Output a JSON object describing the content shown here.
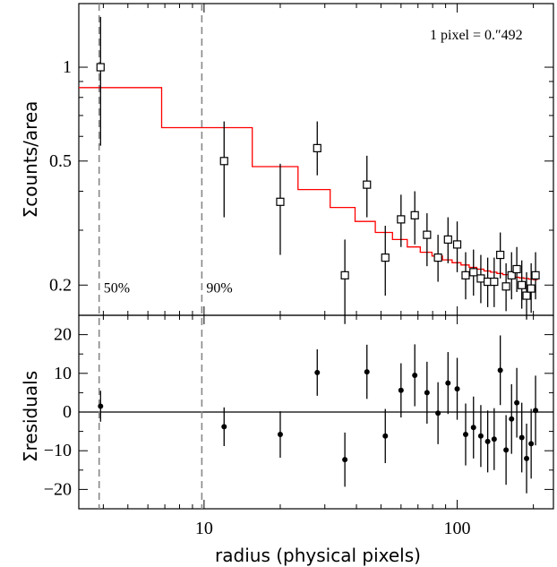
{
  "chart_data": {
    "type": "scatter",
    "xlabel": "radius (physical pixels)",
    "xscale": "log",
    "xlim": [
      3.2,
      240
    ],
    "xticks": [
      10,
      100
    ],
    "xtick_labels": [
      "10",
      "100"
    ],
    "annotation": "1 pixel = 0.″492",
    "top_panel": {
      "ylabel": "Σcounts/area",
      "yscale": "log",
      "ylim": [
        0.16,
        1.6
      ],
      "yticks": [
        0.2,
        0.5,
        1
      ],
      "ytick_labels": [
        "0.2",
        "0.5",
        "1"
      ],
      "points": [
        {
          "x": 3.9,
          "y": 1.0,
          "y_lo": 0.56,
          "y_hi": 1.45
        },
        {
          "x": 12,
          "y": 0.5,
          "y_lo": 0.33,
          "y_hi": 0.67
        },
        {
          "x": 20,
          "y": 0.37,
          "y_lo": 0.25,
          "y_hi": 0.49
        },
        {
          "x": 28,
          "y": 0.55,
          "y_lo": 0.45,
          "y_hi": 0.67
        },
        {
          "x": 36,
          "y": 0.215,
          "y_lo": 0.15,
          "y_hi": 0.28
        },
        {
          "x": 44,
          "y": 0.42,
          "y_lo": 0.33,
          "y_hi": 0.52
        },
        {
          "x": 52,
          "y": 0.245,
          "y_lo": 0.185,
          "y_hi": 0.31
        },
        {
          "x": 60,
          "y": 0.325,
          "y_lo": 0.265,
          "y_hi": 0.39
        },
        {
          "x": 68,
          "y": 0.335,
          "y_lo": 0.27,
          "y_hi": 0.4
        },
        {
          "x": 76,
          "y": 0.29,
          "y_lo": 0.23,
          "y_hi": 0.34
        },
        {
          "x": 84,
          "y": 0.245,
          "y_lo": 0.205,
          "y_hi": 0.29
        },
        {
          "x": 92,
          "y": 0.28,
          "y_lo": 0.235,
          "y_hi": 0.33
        },
        {
          "x": 100,
          "y": 0.27,
          "y_lo": 0.22,
          "y_hi": 0.32
        },
        {
          "x": 108,
          "y": 0.215,
          "y_lo": 0.18,
          "y_hi": 0.255
        },
        {
          "x": 116,
          "y": 0.22,
          "y_lo": 0.185,
          "y_hi": 0.26
        },
        {
          "x": 124,
          "y": 0.21,
          "y_lo": 0.175,
          "y_hi": 0.25
        },
        {
          "x": 132,
          "y": 0.205,
          "y_lo": 0.17,
          "y_hi": 0.245
        },
        {
          "x": 140,
          "y": 0.205,
          "y_lo": 0.17,
          "y_hi": 0.245
        },
        {
          "x": 148,
          "y": 0.25,
          "y_lo": 0.21,
          "y_hi": 0.295
        },
        {
          "x": 156,
          "y": 0.198,
          "y_lo": 0.165,
          "y_hi": 0.235
        },
        {
          "x": 164,
          "y": 0.215,
          "y_lo": 0.18,
          "y_hi": 0.255
        },
        {
          "x": 172,
          "y": 0.225,
          "y_lo": 0.19,
          "y_hi": 0.265
        },
        {
          "x": 180,
          "y": 0.2,
          "y_lo": 0.168,
          "y_hi": 0.24
        },
        {
          "x": 188,
          "y": 0.185,
          "y_lo": 0.155,
          "y_hi": 0.22
        },
        {
          "x": 196,
          "y": 0.195,
          "y_lo": 0.163,
          "y_hi": 0.235
        },
        {
          "x": 204,
          "y": 0.215,
          "y_lo": 0.18,
          "y_hi": 0.255
        }
      ],
      "model_step": [
        {
          "x0": 3.2,
          "x1": 6.8,
          "y": 0.86
        },
        {
          "x0": 6.8,
          "x1": 15.5,
          "y": 0.64
        },
        {
          "x0": 15.5,
          "x1": 23.5,
          "y": 0.48
        },
        {
          "x0": 23.5,
          "x1": 31.5,
          "y": 0.405
        },
        {
          "x0": 31.5,
          "x1": 39.5,
          "y": 0.355
        },
        {
          "x0": 39.5,
          "x1": 47.5,
          "y": 0.32
        },
        {
          "x0": 47.5,
          "x1": 55.5,
          "y": 0.295
        },
        {
          "x0": 55.5,
          "x1": 63.5,
          "y": 0.28
        },
        {
          "x0": 63.5,
          "x1": 71.5,
          "y": 0.265
        },
        {
          "x0": 71.5,
          "x1": 79.5,
          "y": 0.255
        },
        {
          "x0": 79.5,
          "x1": 87.5,
          "y": 0.248
        },
        {
          "x0": 87.5,
          "x1": 95.5,
          "y": 0.241
        },
        {
          "x0": 95.5,
          "x1": 103.5,
          "y": 0.236
        },
        {
          "x0": 103.5,
          "x1": 111.5,
          "y": 0.232
        },
        {
          "x0": 111.5,
          "x1": 119.5,
          "y": 0.228
        },
        {
          "x0": 119.5,
          "x1": 127.5,
          "y": 0.225
        },
        {
          "x0": 127.5,
          "x1": 135.5,
          "y": 0.222
        },
        {
          "x0": 135.5,
          "x1": 143.5,
          "y": 0.22
        },
        {
          "x0": 143.5,
          "x1": 151.5,
          "y": 0.218
        },
        {
          "x0": 151.5,
          "x1": 159.5,
          "y": 0.216
        },
        {
          "x0": 159.5,
          "x1": 167.5,
          "y": 0.214
        },
        {
          "x0": 167.5,
          "x1": 175.5,
          "y": 0.212
        },
        {
          "x0": 175.5,
          "x1": 183.5,
          "y": 0.211
        },
        {
          "x0": 183.5,
          "x1": 191.5,
          "y": 0.21
        },
        {
          "x0": 191.5,
          "x1": 199.5,
          "y": 0.209
        },
        {
          "x0": 199.5,
          "x1": 208,
          "y": 0.208
        }
      ],
      "model_color": "#ff0000",
      "marker": "open-square"
    },
    "bottom_panel": {
      "ylabel": "Σresiduals",
      "ylim": [
        -25,
        25
      ],
      "yticks": [
        -20,
        -10,
        0,
        10,
        20
      ],
      "ytick_labels": [
        "−20",
        "−10",
        "0",
        "10",
        "20"
      ],
      "zero_line": true,
      "points": [
        {
          "x": 3.9,
          "y": 1.5,
          "err": 4
        },
        {
          "x": 12,
          "y": -3.8,
          "err": 5
        },
        {
          "x": 20,
          "y": -5.8,
          "err": 6
        },
        {
          "x": 28,
          "y": 10.2,
          "err": 6
        },
        {
          "x": 36,
          "y": -12.3,
          "err": 7
        },
        {
          "x": 44,
          "y": 10.4,
          "err": 7
        },
        {
          "x": 52,
          "y": -6.2,
          "err": 7
        },
        {
          "x": 60,
          "y": 5.6,
          "err": 7
        },
        {
          "x": 68,
          "y": 9.5,
          "err": 8
        },
        {
          "x": 76,
          "y": 5.0,
          "err": 8
        },
        {
          "x": 84,
          "y": -0.3,
          "err": 8
        },
        {
          "x": 92,
          "y": 7.5,
          "err": 8
        },
        {
          "x": 100,
          "y": 6.0,
          "err": 8
        },
        {
          "x": 108,
          "y": -5.8,
          "err": 8
        },
        {
          "x": 116,
          "y": -4.0,
          "err": 8
        },
        {
          "x": 124,
          "y": -6.2,
          "err": 8
        },
        {
          "x": 132,
          "y": -7.6,
          "err": 8
        },
        {
          "x": 140,
          "y": -7.0,
          "err": 8
        },
        {
          "x": 148,
          "y": 10.8,
          "err": 9
        },
        {
          "x": 156,
          "y": -9.8,
          "err": 9
        },
        {
          "x": 164,
          "y": -1.8,
          "err": 9
        },
        {
          "x": 172,
          "y": 2.4,
          "err": 9
        },
        {
          "x": 180,
          "y": -6.6,
          "err": 9
        },
        {
          "x": 188,
          "y": -12.0,
          "err": 9
        },
        {
          "x": 196,
          "y": -8.2,
          "err": 9
        },
        {
          "x": 204,
          "y": 0.4,
          "err": 9
        }
      ],
      "marker": "filled-circle"
    },
    "vlines": [
      {
        "x": 3.85,
        "label": "50%"
      },
      {
        "x": 9.8,
        "label": "90%"
      }
    ]
  }
}
